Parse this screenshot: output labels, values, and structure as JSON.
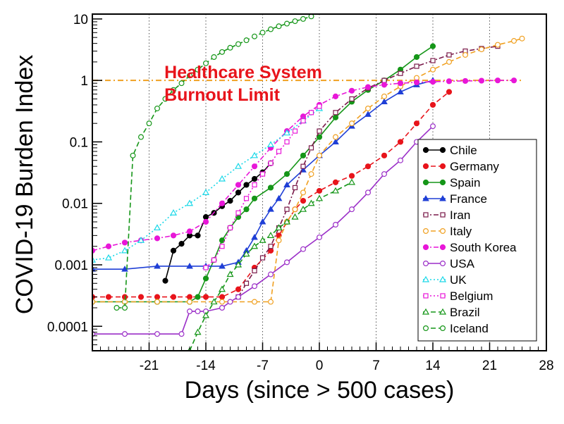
{
  "chart_data": {
    "type": "line",
    "title": "",
    "xlabel": "Days (since > 500 cases)",
    "ylabel": "COVID-19 Burden Index",
    "xlim": [
      -28,
      28
    ],
    "ylim": [
      4e-05,
      12
    ],
    "yscale": "log",
    "grid": "vertical dotted lines at x ticks",
    "legend_position": "right",
    "x_ticks": [
      -21,
      -14,
      -7,
      0,
      7,
      14,
      21,
      28
    ],
    "x_tick_labels": [
      "-21",
      "-14",
      "-7",
      "0",
      "7",
      "14",
      "21",
      "28"
    ],
    "y_ticks": [
      0.0001,
      0.001,
      0.01,
      0.1,
      1,
      10
    ],
    "y_tick_labels": [
      "0.0001",
      "0.001",
      "0.01",
      "0.1",
      "1",
      "10"
    ],
    "annotation": {
      "line1": "Healthcare System",
      "line2": "Burnout Limit",
      "y_value": 1,
      "color": "#e8141b",
      "line_color": "#f0a020"
    },
    "series": [
      {
        "name": "Chile",
        "color": "#000000",
        "marker": "filled-circle",
        "dash": "solid",
        "x": [
          -19,
          -18,
          -17,
          -16,
          -15,
          -14,
          -13,
          -12,
          -11,
          -10,
          -9,
          -8,
          -7,
          -6
        ],
        "y": [
          0.00055,
          0.0017,
          0.0022,
          0.003,
          0.003,
          0.006,
          0.007,
          0.009,
          0.011,
          0.015,
          0.02,
          0.025,
          0.032,
          0.045
        ]
      },
      {
        "name": "Germany",
        "color": "#e8141b",
        "marker": "filled-circle",
        "dash": "dashed",
        "x": [
          -28,
          -26,
          -24,
          -22,
          -20,
          -18,
          -16,
          -14,
          -12,
          -10,
          -8,
          -6,
          -5,
          -4,
          -3,
          -2,
          0,
          2,
          4,
          6,
          8,
          10,
          12,
          14,
          16
        ],
        "y": [
          0.0003,
          0.0003,
          0.0003,
          0.0003,
          0.0003,
          0.0003,
          0.0003,
          0.0003,
          0.0003,
          0.0004,
          0.0009,
          0.0017,
          0.003,
          0.005,
          0.008,
          0.011,
          0.016,
          0.022,
          0.028,
          0.04,
          0.06,
          0.1,
          0.2,
          0.4,
          0.65
        ]
      },
      {
        "name": "Spain",
        "color": "#159618",
        "marker": "filled-circle",
        "dash": "solid",
        "x": [
          -28,
          -24,
          -20,
          -16,
          -15,
          -14,
          -13,
          -12,
          -11,
          -10,
          -9,
          -8,
          -6,
          -4,
          -2,
          0,
          2,
          4,
          6,
          8,
          10,
          12,
          14
        ],
        "y": [
          0.00025,
          0.00025,
          0.00025,
          0.00025,
          0.0003,
          0.0006,
          0.0012,
          0.0025,
          0.004,
          0.006,
          0.008,
          0.012,
          0.018,
          0.03,
          0.06,
          0.12,
          0.25,
          0.45,
          0.7,
          1.0,
          1.5,
          2.4,
          3.6
        ]
      },
      {
        "name": "France",
        "color": "#1f3fd6",
        "marker": "filled-triangle",
        "dash": "solid",
        "x": [
          -28,
          -24,
          -20,
          -16,
          -14,
          -12,
          -10,
          -9,
          -8,
          -7,
          -6,
          -5,
          -4,
          -2,
          0,
          2,
          4,
          6,
          8,
          10,
          12,
          14
        ],
        "y": [
          0.00085,
          0.00085,
          0.00095,
          0.00095,
          0.00095,
          0.00095,
          0.0011,
          0.0017,
          0.0028,
          0.005,
          0.008,
          0.012,
          0.02,
          0.035,
          0.06,
          0.1,
          0.18,
          0.28,
          0.45,
          0.65,
          0.85,
          1.0
        ]
      },
      {
        "name": "Iran",
        "color": "#7a1a4a",
        "marker": "open-square",
        "dash": "dash-dot",
        "x": [
          -10,
          -9,
          -8,
          -7,
          -6,
          -5,
          -4,
          -3,
          -2,
          -1,
          0,
          2,
          4,
          6,
          8,
          10,
          12,
          14,
          16,
          18,
          20,
          22
        ],
        "y": [
          0.0003,
          0.0005,
          0.0008,
          0.0013,
          0.002,
          0.004,
          0.008,
          0.018,
          0.04,
          0.08,
          0.15,
          0.3,
          0.5,
          0.75,
          1.0,
          1.3,
          1.7,
          2.1,
          2.6,
          3.0,
          3.3,
          3.6
        ]
      },
      {
        "name": "Italy",
        "color": "#f0a020",
        "marker": "open-circle",
        "dash": "dashed",
        "x": [
          -28,
          -24,
          -20,
          -16,
          -12,
          -8,
          -6,
          -5,
          -4,
          -3,
          -2,
          -1,
          0,
          2,
          4,
          6,
          8,
          10,
          12,
          14,
          16,
          18,
          20,
          22,
          24,
          25
        ],
        "y": [
          0.00025,
          0.00025,
          0.00025,
          0.00025,
          0.00025,
          0.00025,
          0.00025,
          0.0025,
          0.005,
          0.008,
          0.015,
          0.03,
          0.06,
          0.12,
          0.2,
          0.35,
          0.55,
          0.8,
          1.1,
          1.5,
          2.0,
          2.6,
          3.2,
          3.8,
          4.4,
          4.8
        ]
      },
      {
        "name": "South Korea",
        "color": "#e817d8",
        "marker": "filled-circle",
        "dash": "dash-dot",
        "x": [
          -28,
          -26,
          -24,
          -22,
          -20,
          -18,
          -16,
          -14,
          -12,
          -10,
          -8,
          -6,
          -4,
          -2,
          0,
          2,
          4,
          6,
          8,
          10,
          12,
          14,
          16,
          18,
          20,
          22,
          24
        ],
        "y": [
          0.0017,
          0.002,
          0.0023,
          0.0025,
          0.0027,
          0.003,
          0.0035,
          0.005,
          0.01,
          0.02,
          0.04,
          0.08,
          0.15,
          0.26,
          0.4,
          0.55,
          0.68,
          0.78,
          0.85,
          0.9,
          0.93,
          0.95,
          0.97,
          0.98,
          0.99,
          1.0,
          1.0
        ]
      },
      {
        "name": "USA",
        "color": "#9b2fc8",
        "marker": "open-circle",
        "dash": "solid",
        "x": [
          -28,
          -24,
          -20,
          -17,
          -16,
          -15,
          -14,
          -12,
          -11,
          -10,
          -8,
          -6,
          -4,
          -2,
          0,
          2,
          4,
          6,
          8,
          10,
          12,
          14
        ],
        "y": [
          7.5e-05,
          7.5e-05,
          7.5e-05,
          7.5e-05,
          0.000175,
          0.000175,
          0.000175,
          0.0002,
          0.00025,
          0.0003,
          0.00045,
          0.0007,
          0.0011,
          0.0018,
          0.0028,
          0.0045,
          0.008,
          0.015,
          0.03,
          0.05,
          0.1,
          0.18
        ]
      },
      {
        "name": "UK",
        "color": "#1ad8e8",
        "marker": "open-triangle",
        "dash": "dotted",
        "x": [
          -28,
          -26,
          -24,
          -22,
          -20,
          -18,
          -16,
          -14,
          -12,
          -10,
          -8,
          -6,
          -4,
          -2,
          0
        ],
        "y": [
          0.0012,
          0.0013,
          0.0017,
          0.0025,
          0.004,
          0.007,
          0.01,
          0.015,
          0.025,
          0.04,
          0.06,
          0.09,
          0.14,
          0.22,
          0.35
        ]
      },
      {
        "name": "Belgium",
        "color": "#e817d8",
        "marker": "open-square",
        "dash": "dotted",
        "x": [
          -14,
          -13,
          -12,
          -11,
          -10,
          -9,
          -8,
          -7,
          -6,
          -5,
          -4,
          -3,
          -2,
          -1,
          0
        ],
        "y": [
          0.0009,
          0.0012,
          0.002,
          0.004,
          0.007,
          0.012,
          0.02,
          0.03,
          0.045,
          0.07,
          0.1,
          0.15,
          0.22,
          0.3,
          0.38
        ]
      },
      {
        "name": "Brazil",
        "color": "#159618",
        "marker": "open-triangle",
        "dash": "dashed",
        "x": [
          -16,
          -15,
          -14,
          -13,
          -12,
          -11,
          -10,
          -9,
          -8,
          -7,
          -6,
          -5,
          -4,
          -3,
          -2,
          -1,
          0,
          2,
          4
        ],
        "y": [
          4e-05,
          8e-05,
          0.00015,
          0.00025,
          0.0004,
          0.0007,
          0.001,
          0.0015,
          0.002,
          0.0025,
          0.003,
          0.004,
          0.005,
          0.006,
          0.008,
          0.01,
          0.012,
          0.016,
          0.022
        ]
      },
      {
        "name": "Iceland",
        "color": "#159618",
        "marker": "open-circle",
        "dash": "dashed",
        "x": [
          -25,
          -24,
          -23,
          -22,
          -21,
          -20,
          -19,
          -18,
          -17,
          -16,
          -15,
          -14,
          -13,
          -12,
          -11,
          -10,
          -9,
          -8,
          -7,
          -6,
          -5,
          -4,
          -3,
          -2,
          -1
        ],
        "y": [
          0.0002,
          0.0002,
          0.06,
          0.12,
          0.2,
          0.35,
          0.5,
          0.7,
          0.9,
          1.2,
          1.5,
          1.9,
          2.4,
          2.9,
          3.4,
          3.9,
          4.5,
          5.2,
          6.0,
          6.8,
          7.6,
          8.4,
          9.2,
          10.0,
          11.0
        ]
      }
    ]
  }
}
